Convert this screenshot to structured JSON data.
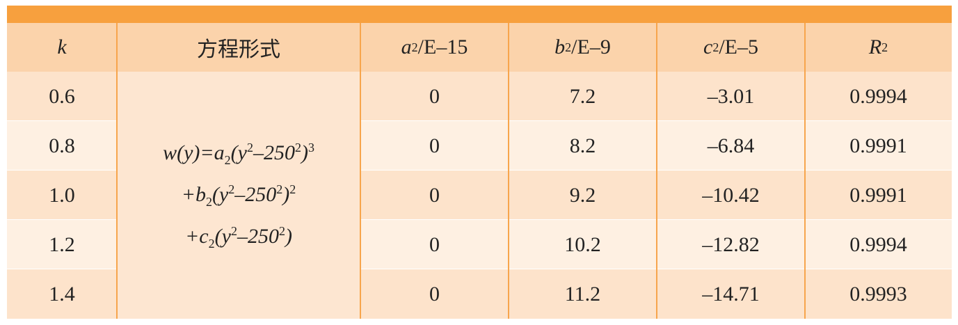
{
  "table": {
    "header": [
      {
        "var": "k"
      },
      {
        "text": "方程形式"
      },
      {
        "var": "a",
        "sub": "2",
        "unit": "/E–15"
      },
      {
        "var": "b",
        "sub": "2",
        "unit": "/E–9"
      },
      {
        "var": "c",
        "sub": "2",
        "unit": "/E–5"
      },
      {
        "var": "R",
        "sup": "2"
      }
    ],
    "formula": [
      [
        {
          "text": "w(y)=a"
        },
        {
          "sub": "2"
        },
        {
          "text": "(y"
        },
        {
          "sup": "2"
        },
        {
          "text": "–250"
        },
        {
          "sup": "2"
        },
        {
          "text": ")"
        },
        {
          "sup": "3"
        }
      ],
      [
        {
          "text": "+b"
        },
        {
          "sub": "2"
        },
        {
          "text": "(y"
        },
        {
          "sup": "2"
        },
        {
          "text": "–250"
        },
        {
          "sup": "2"
        },
        {
          "text": ")"
        },
        {
          "sup": "2"
        }
      ],
      [
        {
          "text": "+c"
        },
        {
          "sub": "2"
        },
        {
          "text": "(y"
        },
        {
          "sup": "2"
        },
        {
          "text": "–250"
        },
        {
          "sup": "2"
        },
        {
          "text": ")"
        }
      ]
    ],
    "rows": [
      [
        "0.6",
        "0",
        "7.2",
        "–3.01",
        "0.9994"
      ],
      [
        "0.8",
        "0",
        "8.2",
        "–6.84",
        "0.9991"
      ],
      [
        "1.0",
        "0",
        "9.2",
        "–10.42",
        "0.9991"
      ],
      [
        "1.2",
        "0",
        "10.2",
        "–12.82",
        "0.9994"
      ],
      [
        "1.4",
        "0",
        "11.2",
        "–14.71",
        "0.9993"
      ]
    ]
  }
}
